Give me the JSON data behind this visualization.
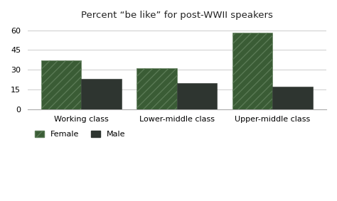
{
  "title": "Percent “be like” for post-WWII speakers",
  "categories": [
    "Working class",
    "Lower-middle class",
    "Upper-middle class"
  ],
  "female_values": [
    37,
    31,
    58
  ],
  "male_values": [
    23,
    20,
    17
  ],
  "female_color": "#3a5c35",
  "male_color": "#2e3530",
  "ylim": [
    0,
    65
  ],
  "yticks": [
    0,
    15,
    30,
    45,
    60
  ],
  "bar_width": 0.42,
  "background_color": "#ffffff",
  "legend_labels": [
    "Female",
    "Male"
  ],
  "hatch": "///",
  "title_fontsize": 9.5,
  "tick_fontsize": 8,
  "grid_color": "#cccccc",
  "spine_color": "#aaaaaa"
}
